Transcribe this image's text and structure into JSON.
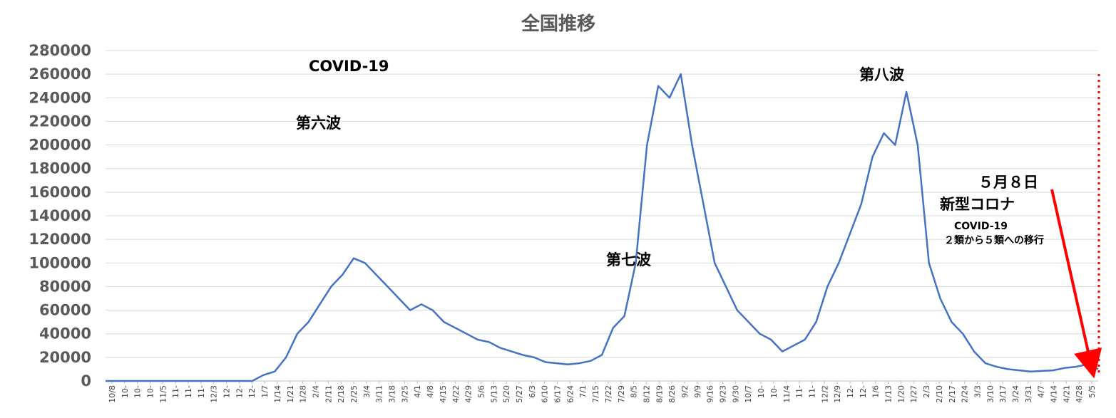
{
  "chart_data": {
    "type": "line",
    "title": "全国推移",
    "ylim": [
      0,
      280000
    ],
    "yticks": [
      0,
      20000,
      40000,
      60000,
      80000,
      100000,
      120000,
      140000,
      160000,
      180000,
      200000,
      220000,
      240000,
      260000,
      280000
    ],
    "grid": "horizontal",
    "line_color": "#4472c4",
    "x_tick_labels": [
      "10/8",
      "10-",
      "10-",
      "10-",
      "11/5",
      "11-",
      "11-",
      "11-",
      "12/3",
      "12-",
      "12-",
      "12-",
      "1/7",
      "1/14",
      "1/21",
      "1/28",
      "2/4",
      "2/11",
      "2/18",
      "2/25",
      "3/4",
      "3/11",
      "3/18",
      "3/25",
      "4/1",
      "4/8",
      "4/15",
      "4/22",
      "4/29",
      "5/6",
      "5/13",
      "5/20",
      "5/27",
      "6/3",
      "6/10",
      "6/17",
      "6/24",
      "7/1",
      "7/15",
      "7/22",
      "7/29",
      "8/5",
      "8/12",
      "8/19",
      "8/26",
      "9/2",
      "9/9",
      "9/16",
      "9/23",
      "9/30",
      "10/7",
      "10-",
      "10-",
      "11/4",
      "11-",
      "11-",
      "12/2",
      "12/9",
      "12-",
      "12-",
      "1/6",
      "1/13",
      "1/20",
      "1/27",
      "2/3",
      "2/10",
      "2/17",
      "2/24",
      "3/3",
      "3/10",
      "3/17",
      "3/24",
      "3/31",
      "4/7",
      "4/14",
      "4/21",
      "4/28",
      "5/5"
    ],
    "series": [
      {
        "values": [
          [
            0,
            0
          ],
          [
            12,
            0
          ],
          [
            13,
            0
          ],
          [
            14,
            5000
          ],
          [
            15,
            8000
          ],
          [
            16,
            20000
          ],
          [
            17,
            40000
          ],
          [
            18,
            50000
          ],
          [
            19,
            65000
          ],
          [
            20,
            80000
          ],
          [
            21,
            90000
          ],
          [
            22,
            104000
          ],
          [
            23,
            100000
          ],
          [
            24,
            90000
          ],
          [
            25,
            80000
          ],
          [
            26,
            70000
          ],
          [
            27,
            60000
          ],
          [
            28,
            65000
          ],
          [
            29,
            60000
          ],
          [
            30,
            50000
          ],
          [
            31,
            45000
          ],
          [
            32,
            40000
          ],
          [
            33,
            35000
          ],
          [
            34,
            33000
          ],
          [
            35,
            28000
          ],
          [
            36,
            25000
          ],
          [
            37,
            22000
          ],
          [
            38,
            20000
          ],
          [
            39,
            16000
          ],
          [
            40,
            15000
          ],
          [
            41,
            14000
          ],
          [
            42,
            15000
          ],
          [
            43,
            17000
          ],
          [
            44,
            22000
          ],
          [
            45,
            45000
          ],
          [
            46,
            55000
          ],
          [
            47,
            100000
          ],
          [
            48,
            200000
          ],
          [
            49,
            250000
          ],
          [
            50,
            240000
          ],
          [
            51,
            260000
          ],
          [
            52,
            200000
          ],
          [
            53,
            150000
          ],
          [
            54,
            100000
          ],
          [
            55,
            80000
          ],
          [
            56,
            60000
          ],
          [
            57,
            50000
          ],
          [
            58,
            40000
          ],
          [
            59,
            35000
          ],
          [
            60,
            25000
          ],
          [
            61,
            30000
          ],
          [
            62,
            35000
          ],
          [
            63,
            50000
          ],
          [
            64,
            80000
          ],
          [
            65,
            100000
          ],
          [
            66,
            125000
          ],
          [
            67,
            150000
          ],
          [
            68,
            190000
          ],
          [
            69,
            210000
          ],
          [
            70,
            200000
          ],
          [
            71,
            245000
          ],
          [
            72,
            200000
          ],
          [
            73,
            100000
          ],
          [
            74,
            70000
          ],
          [
            75,
            50000
          ],
          [
            76,
            40000
          ],
          [
            77,
            25000
          ],
          [
            78,
            15000
          ],
          [
            79,
            12000
          ],
          [
            80,
            10000
          ],
          [
            81,
            9000
          ],
          [
            82,
            8000
          ],
          [
            83,
            8500
          ],
          [
            84,
            9000
          ],
          [
            85,
            11000
          ],
          [
            86,
            12000
          ],
          [
            87,
            14000
          ],
          [
            88,
            10000
          ]
        ]
      }
    ],
    "annotations": [
      "COVID-19",
      "第六波",
      "第七波",
      "第八波",
      "５月８日",
      "新型コロナ",
      "COVID-19",
      "２類から５類への移行"
    ]
  },
  "colors": {
    "line": "#4472c4",
    "arrow": "#ff0000",
    "grid": "#d9d9d9",
    "axis_text": "#595959"
  }
}
